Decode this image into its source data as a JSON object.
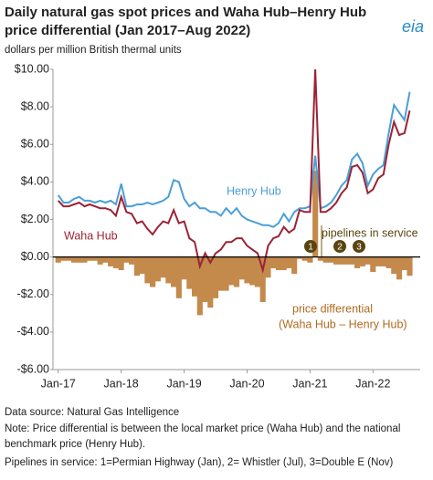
{
  "chart_data": {
    "type": "line",
    "title": "Daily natural gas spot prices and Waha Hub–Henry Hub price differential (Jan 2017–Aug 2022)",
    "subtitle": "dollars per million British thermal units",
    "logo": "eia",
    "x": [
      "2017-01",
      "2017-02",
      "2017-03",
      "2017-04",
      "2017-05",
      "2017-06",
      "2017-07",
      "2017-08",
      "2017-09",
      "2017-10",
      "2017-11",
      "2017-12",
      "2018-01",
      "2018-02",
      "2018-03",
      "2018-04",
      "2018-05",
      "2018-06",
      "2018-07",
      "2018-08",
      "2018-09",
      "2018-10",
      "2018-11",
      "2018-12",
      "2019-01",
      "2019-02",
      "2019-03",
      "2019-04",
      "2019-05",
      "2019-06",
      "2019-07",
      "2019-08",
      "2019-09",
      "2019-10",
      "2019-11",
      "2019-12",
      "2020-01",
      "2020-02",
      "2020-03",
      "2020-04",
      "2020-05",
      "2020-06",
      "2020-07",
      "2020-08",
      "2020-09",
      "2020-10",
      "2020-11",
      "2020-12",
      "2021-01",
      "2021-02",
      "2021-03",
      "2021-04",
      "2021-05",
      "2021-06",
      "2021-07",
      "2021-08",
      "2021-09",
      "2021-10",
      "2021-11",
      "2021-12",
      "2022-01",
      "2022-02",
      "2022-03",
      "2022-04",
      "2022-05",
      "2022-06",
      "2022-07",
      "2022-08"
    ],
    "xlim": [
      "2016-12",
      "2022-10"
    ],
    "xticks": [
      {
        "value": "2017-01",
        "label": "Jan-17"
      },
      {
        "value": "2018-01",
        "label": "Jan-18"
      },
      {
        "value": "2019-01",
        "label": "Jan-19"
      },
      {
        "value": "2020-01",
        "label": "Jan-20"
      },
      {
        "value": "2021-01",
        "label": "Jan-21"
      },
      {
        "value": "2022-01",
        "label": "Jan-22"
      }
    ],
    "ylim": [
      -6,
      10
    ],
    "yticks": [
      {
        "value": 10,
        "label": "$10.00"
      },
      {
        "value": 8,
        "label": "$8.00"
      },
      {
        "value": 6,
        "label": "$6.00"
      },
      {
        "value": 4,
        "label": "$4.00"
      },
      {
        "value": 2,
        "label": "$2.00"
      },
      {
        "value": 0,
        "label": "$0.00"
      },
      {
        "value": -2,
        "label": "-$2.00"
      },
      {
        "value": -4,
        "label": "-$4.00"
      },
      {
        "value": -6,
        "label": "-$6.00"
      }
    ],
    "series": [
      {
        "name": "price differential",
        "type": "bar",
        "color": "#c48a4c",
        "values": [
          -0.3,
          -0.2,
          -0.2,
          -0.3,
          -0.3,
          -0.3,
          -0.2,
          -0.2,
          -0.4,
          -0.3,
          -0.5,
          -0.6,
          -0.7,
          -0.3,
          -0.4,
          -1.0,
          -0.9,
          -1.4,
          -1.6,
          -1.3,
          -1.1,
          -1.4,
          -1.6,
          -2.2,
          -1.2,
          -1.7,
          -2.1,
          -3.1,
          -2.4,
          -2.7,
          -2.2,
          -1.8,
          -1.8,
          -1.5,
          -1.6,
          -1.2,
          -1.4,
          -1.5,
          -1.6,
          -2.4,
          -1.1,
          -0.6,
          -0.7,
          -0.7,
          -0.6,
          -0.9,
          -0.1,
          -0.2,
          -0.3,
          4.6,
          -0.2,
          -0.3,
          -0.3,
          -0.4,
          -0.4,
          -0.4,
          -0.4,
          -0.6,
          -0.5,
          -0.4,
          -0.8,
          -0.5,
          -0.5,
          -0.6,
          -0.9,
          -1.2,
          -0.7,
          -1.0
        ]
      },
      {
        "name": "Henry Hub",
        "type": "line",
        "color": "#4b9fd8",
        "values": [
          3.3,
          2.9,
          2.9,
          3.1,
          3.2,
          3.0,
          3.0,
          2.9,
          3.0,
          2.9,
          3.0,
          2.8,
          3.9,
          2.7,
          2.7,
          2.8,
          2.8,
          2.9,
          2.8,
          2.9,
          3.0,
          3.2,
          4.1,
          4.0,
          3.1,
          2.7,
          2.9,
          2.6,
          2.6,
          2.4,
          2.4,
          2.2,
          2.6,
          2.3,
          2.6,
          2.2,
          2.0,
          1.9,
          1.8,
          1.7,
          1.7,
          1.6,
          1.8,
          2.3,
          1.9,
          2.4,
          2.6,
          2.6,
          2.7,
          5.4,
          2.6,
          2.7,
          2.9,
          3.3,
          3.8,
          4.1,
          5.2,
          5.5,
          5.0,
          3.8,
          4.4,
          4.7,
          4.9,
          6.6,
          8.1,
          7.7,
          7.3,
          8.8
        ]
      },
      {
        "name": "Waha Hub",
        "type": "line",
        "color": "#9b2335",
        "values": [
          3.0,
          2.7,
          2.7,
          2.8,
          2.9,
          2.7,
          2.8,
          2.7,
          2.6,
          2.6,
          2.5,
          2.2,
          3.2,
          2.4,
          2.3,
          1.8,
          1.9,
          1.5,
          1.2,
          1.6,
          1.9,
          1.8,
          2.5,
          1.8,
          1.9,
          1.0,
          0.8,
          -0.5,
          0.2,
          -0.3,
          0.2,
          0.4,
          0.8,
          0.8,
          1.0,
          1.0,
          0.6,
          0.4,
          0.2,
          -0.7,
          0.6,
          1.0,
          1.1,
          1.6,
          1.3,
          1.5,
          2.5,
          2.4,
          2.4,
          10,
          2.4,
          2.4,
          2.6,
          2.9,
          3.4,
          3.7,
          4.8,
          4.9,
          4.5,
          3.4,
          3.6,
          4.2,
          4.4,
          6.0,
          7.2,
          6.5,
          6.6,
          7.8
        ]
      }
    ],
    "annotations": {
      "pipelines": "pipelines in service",
      "diff_line1": "price differential",
      "diff_line2": "(Waha Hub – Henry Hub)",
      "markers": [
        "1",
        "2",
        "3"
      ]
    },
    "notes": [
      "Data source: Natural Gas Intelligence",
      "Note: Price differential is between the local market price (Waha Hub) and the national",
      "benchmark price (Henry Hub).",
      "Pipelines in service: 1=Permian Highway (Jan), 2= Whistler (Jul), 3=Double E (Nov)"
    ]
  }
}
